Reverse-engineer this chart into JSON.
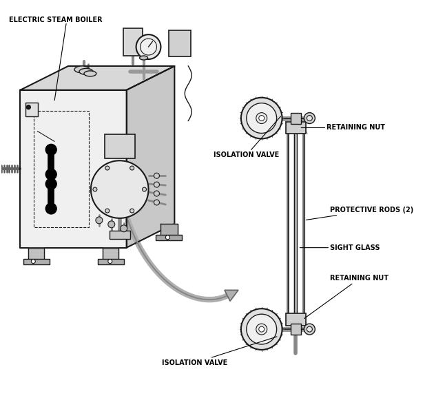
{
  "background_color": "#ffffff",
  "line_color": "#1a1a1a",
  "labels": {
    "electric_steam_boiler": "ELECTRIC STEAM BOILER",
    "retaining_nut_top": "RETAINING NUT",
    "isolation_valve_top": "ISOLATION VALVE",
    "protective_rods": "PROTECTIVE RODS (2)",
    "sight_glass": "SIGHT GLASS",
    "retaining_nut_bottom": "RETAINING NUT",
    "isolation_valve_bottom": "ISOLATION VALVE"
  },
  "figsize": [
    6.46,
    5.78
  ],
  "dpi": 100
}
